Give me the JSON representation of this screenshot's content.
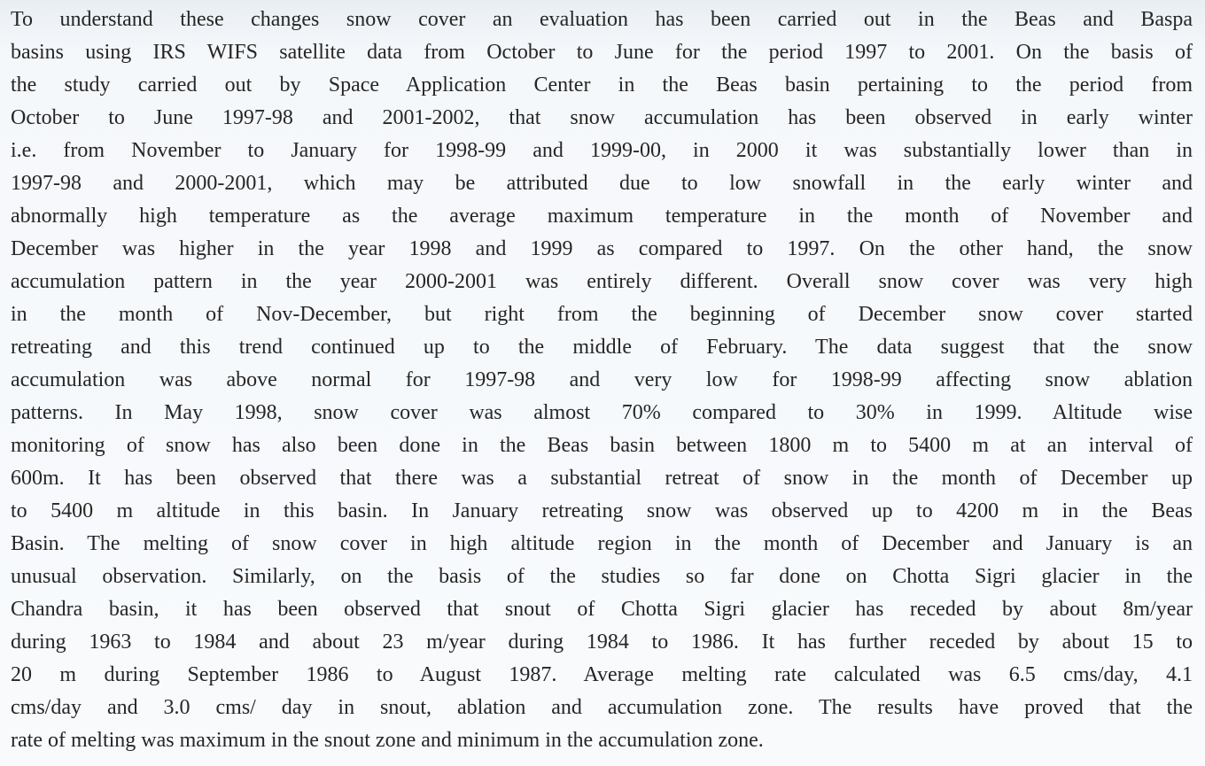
{
  "paragraph": {
    "lines": [
      "To understand these changes snow cover an evaluation has been carried out in the Beas and Baspa",
      "basins using IRS WIFS satellite data from October to June for the period 1997 to 2001. On the basis of",
      "the study carried out by Space Application Center in the Beas basin pertaining to the period from",
      "October to June 1997-98 and 2001-2002, that snow accumulation has been observed in early winter",
      "i.e. from November to January for 1998-99 and 1999-00, in 2000 it was substantially lower than in",
      "1997-98 and 2000-2001, which may be attributed due to low snowfall in the early winter and",
      "abnormally high temperature as the average maximum temperature in the month of  November and",
      "December was higher in the year 1998 and 1999 as compared to 1997. On the other hand, the snow",
      "accumulation pattern in the year 2000-2001 was entirely different. Overall snow cover was very high",
      "in the month of Nov-December, but right from the beginning of December snow cover started",
      "retreating and this trend continued up to the middle of February. The data suggest that the snow",
      "accumulation was above normal for 1997-98 and very low for 1998-99 affecting snow ablation",
      "patterns. In May 1998, snow cover was almost 70% compared to 30% in 1999. Altitude wise",
      "monitoring of snow has also been done in the Beas basin between 1800 m to 5400 m at an interval of",
      "600m. It has been observed that there was a substantial retreat of snow in the month of December up",
      "to 5400 m altitude in this basin. In January retreating snow was observed up to 4200 m in the Beas",
      "Basin. The melting of snow cover in high altitude region in the month of December and January is an",
      "unusual observation. Similarly, on the basis of the studies so far done on Chotta Sigri glacier in the",
      "Chandra basin, it has been observed that snout of Chotta Sigri glacier has receded by about 8m/year",
      "during 1963 to 1984 and about 23 m/year during 1984 to 1986. It has further receded by about 15 to",
      "20 m during September 1986 to August 1987. Average melting rate calculated was 6.5 cms/day, 4.1",
      "cms/day and 3.0 cms/ day in snout, ablation and accumulation zone. The results have proved that the",
      "rate of melting was maximum in the snout zone and minimum in the accumulation zone."
    ]
  }
}
